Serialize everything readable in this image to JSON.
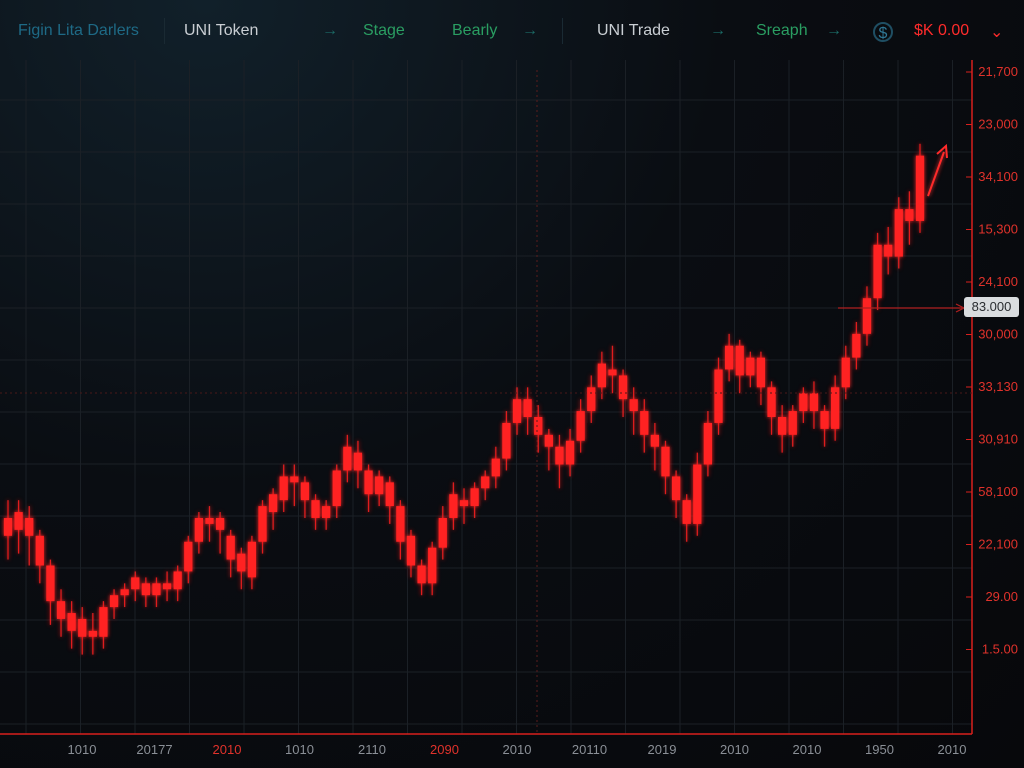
{
  "header": {
    "logo_text": "Figin Lita Darlers",
    "token_label": "UNI Token",
    "stage_label": "Stage",
    "bearly_label": "Bearly",
    "trade_label": "UNI Trade",
    "sreaph_label": "Sreaph",
    "arrow": "→",
    "price_label": "$K 0.00",
    "chevron": "⌄",
    "icon_name": "coin-icon"
  },
  "colors": {
    "candle": "#ff2020",
    "axis": "#d8201d",
    "grid": "#1b2026",
    "accent_green": "#2a9e62",
    "accent_teal": "#1e6a86"
  },
  "chart_data": {
    "type": "candlestick",
    "y_tick_labels": [
      "21,700",
      "23,000",
      "34,100",
      "15,300",
      "24,100",
      "30,000",
      "33,130",
      "30,910",
      "58,100",
      "22,100",
      "29.00",
      "1.5.00"
    ],
    "x_tick_labels": [
      {
        "text": "1010",
        "highlight": false
      },
      {
        "text": "20177",
        "highlight": false
      },
      {
        "text": "2010",
        "highlight": true
      },
      {
        "text": "1010",
        "highlight": false
      },
      {
        "text": "2110",
        "highlight": false
      },
      {
        "text": "2090",
        "highlight": true
      },
      {
        "text": "2010",
        "highlight": false
      },
      {
        "text": "20110",
        "highlight": false
      },
      {
        "text": "2019",
        "highlight": false
      },
      {
        "text": "2010",
        "highlight": false
      },
      {
        "text": "2010",
        "highlight": false
      },
      {
        "text": "1950",
        "highlight": false
      },
      {
        "text": "2010",
        "highlight": false
      }
    ],
    "current_price_label": "83.000",
    "value_range": [
      0,
      100
    ],
    "candles": [
      [
        30,
        33,
        28,
        36,
        26
      ],
      [
        31,
        34,
        29,
        36,
        27
      ],
      [
        33,
        30,
        28,
        35,
        25
      ],
      [
        30,
        25,
        23,
        31,
        22
      ],
      [
        25,
        19,
        17,
        26,
        15
      ],
      [
        19,
        16,
        14,
        21,
        13
      ],
      [
        17,
        14,
        12,
        19,
        11
      ],
      [
        16,
        13,
        12,
        18,
        10
      ],
      [
        14,
        13,
        11,
        17,
        10
      ],
      [
        13,
        18,
        12,
        19,
        11
      ],
      [
        18,
        20,
        17,
        21,
        16
      ],
      [
        20,
        21,
        19,
        22,
        18
      ],
      [
        21,
        23,
        20,
        24,
        19
      ],
      [
        22,
        20,
        19,
        23,
        18
      ],
      [
        20,
        22,
        19,
        23,
        18
      ],
      [
        22,
        21,
        20,
        24,
        19
      ],
      [
        21,
        24,
        20,
        25,
        19
      ],
      [
        24,
        29,
        23,
        30,
        22
      ],
      [
        29,
        33,
        28,
        34,
        27
      ],
      [
        32,
        33,
        30,
        35,
        29
      ],
      [
        33,
        31,
        28,
        34,
        27
      ],
      [
        30,
        26,
        24,
        31,
        23
      ],
      [
        27,
        24,
        22,
        28,
        21
      ],
      [
        23,
        29,
        22,
        30,
        21
      ],
      [
        29,
        35,
        28,
        36,
        27
      ],
      [
        34,
        37,
        32,
        38,
        31
      ],
      [
        36,
        40,
        35,
        42,
        34
      ],
      [
        40,
        39,
        37,
        42,
        35
      ],
      [
        39,
        36,
        34,
        40,
        33
      ],
      [
        36,
        33,
        32,
        37,
        31
      ],
      [
        33,
        35,
        32,
        36,
        31
      ],
      [
        35,
        41,
        34,
        42,
        33
      ],
      [
        41,
        45,
        40,
        47,
        39
      ],
      [
        44,
        41,
        39,
        46,
        38
      ],
      [
        41,
        37,
        35,
        42,
        34
      ],
      [
        37,
        40,
        36,
        41,
        35
      ],
      [
        39,
        35,
        33,
        40,
        32
      ],
      [
        35,
        29,
        27,
        36,
        26
      ],
      [
        30,
        25,
        24,
        31,
        23
      ],
      [
        25,
        22,
        21,
        26,
        20
      ],
      [
        22,
        28,
        21,
        29,
        20
      ],
      [
        28,
        33,
        27,
        35,
        26
      ],
      [
        33,
        37,
        32,
        39,
        31
      ],
      [
        36,
        35,
        33,
        38,
        32
      ],
      [
        35,
        38,
        34,
        39,
        33
      ],
      [
        38,
        40,
        37,
        41,
        36
      ],
      [
        40,
        43,
        39,
        45,
        38
      ],
      [
        43,
        49,
        42,
        51,
        41
      ],
      [
        49,
        53,
        48,
        55,
        47
      ],
      [
        53,
        50,
        48,
        55,
        47
      ],
      [
        50,
        47,
        45,
        52,
        44
      ],
      [
        47,
        45,
        43,
        48,
        41
      ],
      [
        45,
        42,
        40,
        47,
        38
      ],
      [
        42,
        46,
        41,
        48,
        40
      ],
      [
        46,
        51,
        45,
        53,
        44
      ],
      [
        51,
        55,
        50,
        57,
        49
      ],
      [
        55,
        59,
        54,
        61,
        53
      ],
      [
        58,
        57,
        55,
        62,
        54
      ],
      [
        57,
        53,
        51,
        58,
        50
      ],
      [
        53,
        51,
        49,
        55,
        47
      ],
      [
        51,
        47,
        45,
        53,
        44
      ],
      [
        47,
        45,
        43,
        49,
        41
      ],
      [
        45,
        40,
        38,
        46,
        37
      ],
      [
        40,
        36,
        34,
        41,
        33
      ],
      [
        36,
        32,
        30,
        37,
        29
      ],
      [
        32,
        42,
        31,
        44,
        30
      ],
      [
        42,
        49,
        41,
        51,
        40
      ],
      [
        49,
        58,
        48,
        60,
        47
      ],
      [
        58,
        62,
        57,
        64,
        56
      ],
      [
        62,
        57,
        55,
        63,
        54
      ],
      [
        57,
        60,
        56,
        61,
        55
      ],
      [
        60,
        55,
        53,
        61,
        52
      ],
      [
        55,
        50,
        48,
        56,
        47
      ],
      [
        50,
        47,
        45,
        52,
        44
      ],
      [
        47,
        51,
        46,
        52,
        45
      ],
      [
        51,
        54,
        50,
        55,
        49
      ],
      [
        54,
        51,
        49,
        56,
        48
      ],
      [
        51,
        48,
        46,
        52,
        45
      ],
      [
        48,
        55,
        47,
        57,
        46
      ],
      [
        55,
        60,
        54,
        62,
        53
      ],
      [
        60,
        64,
        59,
        66,
        58
      ],
      [
        64,
        70,
        63,
        72,
        62
      ],
      [
        70,
        79,
        69,
        81,
        68
      ],
      [
        79,
        77,
        75,
        82,
        74
      ],
      [
        77,
        85,
        76,
        87,
        75
      ],
      [
        85,
        83,
        80,
        88,
        79
      ],
      [
        83,
        94,
        82,
        96,
        81
      ]
    ]
  }
}
